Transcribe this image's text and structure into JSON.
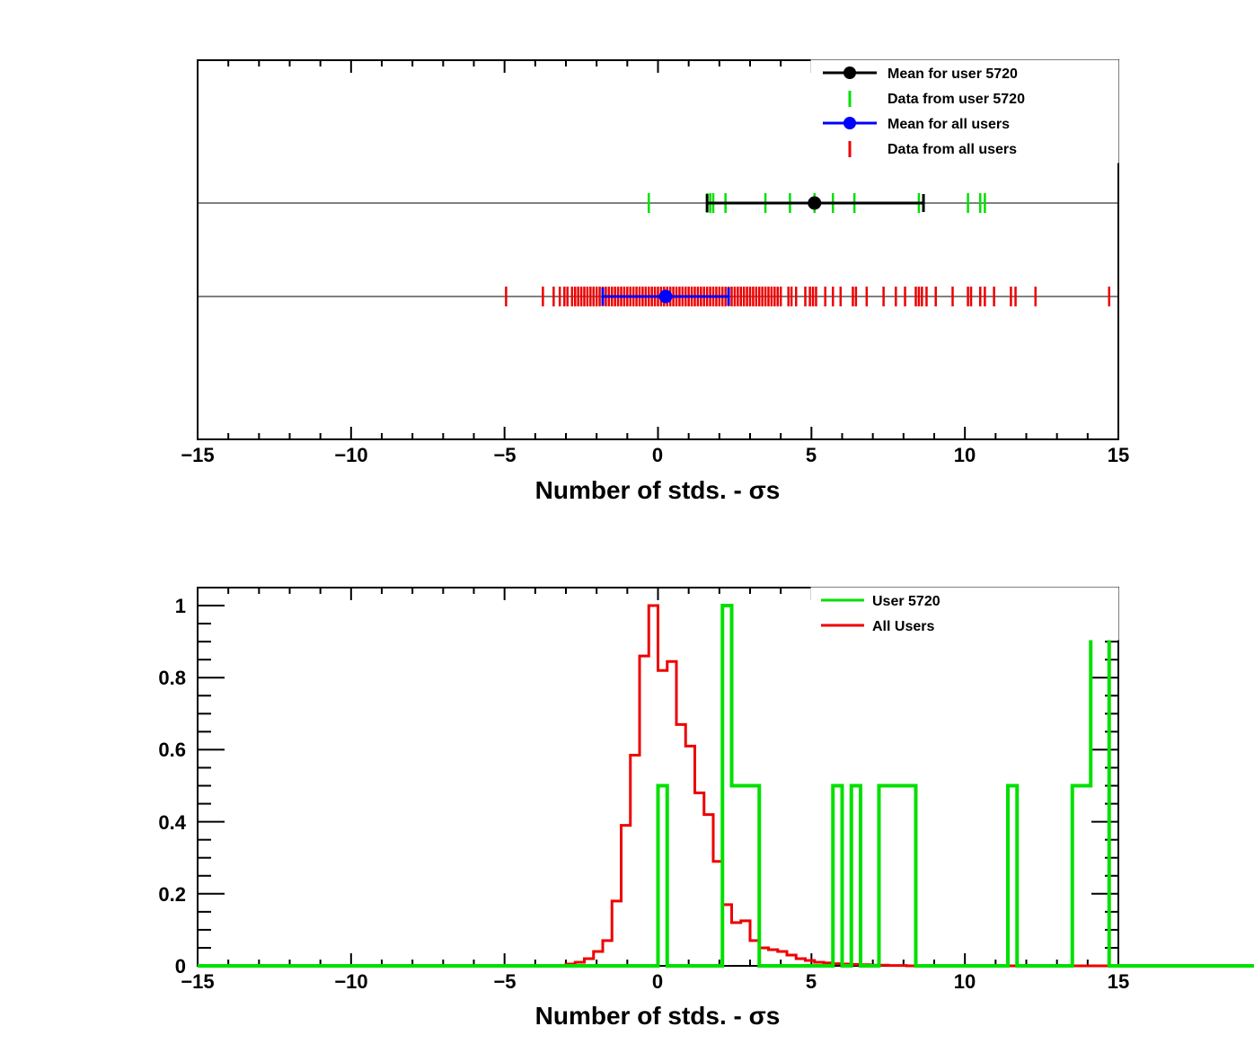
{
  "chart_data": [
    {
      "type": "scatter",
      "panel": "top",
      "xlabel": "Number of stds. -   σs",
      "xlim": [
        -15,
        15
      ],
      "x_ticks": [
        -15,
        -10,
        -5,
        0,
        5,
        10,
        15
      ],
      "x_tick_labels": [
        "−15",
        "−10",
        "−5",
        "0",
        "5",
        "10",
        "15"
      ],
      "grid": false,
      "legend_position": "top-right",
      "legend": [
        {
          "label": "Mean for user 5720",
          "color": "#000000",
          "style": "marker-line"
        },
        {
          "label": "Data from user 5720",
          "color": "#00e000",
          "style": "tick"
        },
        {
          "label": "Mean for all users",
          "color": "#0000ff",
          "style": "marker-line"
        },
        {
          "label": "Data from all users",
          "color": "#ee0000",
          "style": "tick"
        }
      ],
      "user_data": {
        "color": "#00e000",
        "values": [
          -0.3,
          1.6,
          1.7,
          1.8,
          2.2,
          3.5,
          4.3,
          5.1,
          5.7,
          6.4,
          8.5,
          10.1,
          10.5,
          10.65
        ],
        "mean": 5.1,
        "error_range": [
          1.6,
          8.65
        ],
        "mean_color": "#000000"
      },
      "all_data": {
        "color": "#ee0000",
        "values": [
          -4.95,
          -3.75,
          -3.4,
          -3.2,
          -3.05,
          -2.95,
          -2.8,
          -2.7,
          -2.6,
          -2.5,
          -2.4,
          -2.3,
          -2.2,
          -2.1,
          -2.0,
          -1.9,
          -1.8,
          -1.7,
          -1.6,
          -1.5,
          -1.4,
          -1.3,
          -1.2,
          -1.1,
          -1.0,
          -0.9,
          -0.8,
          -0.7,
          -0.6,
          -0.5,
          -0.4,
          -0.3,
          -0.2,
          -0.1,
          0.0,
          0.1,
          0.2,
          0.3,
          0.4,
          0.5,
          0.6,
          0.7,
          0.8,
          0.9,
          1.0,
          1.1,
          1.2,
          1.3,
          1.4,
          1.5,
          1.6,
          1.7,
          1.8,
          1.9,
          2.0,
          2.1,
          2.2,
          2.3,
          2.4,
          2.5,
          2.6,
          2.7,
          2.8,
          2.9,
          3.0,
          3.1,
          3.2,
          3.3,
          3.4,
          3.5,
          3.6,
          3.7,
          3.8,
          3.9,
          4.0,
          4.25,
          4.35,
          4.5,
          4.8,
          4.95,
          5.05,
          5.15,
          5.45,
          5.7,
          5.95,
          6.35,
          6.45,
          6.8,
          7.35,
          7.75,
          8.05,
          8.4,
          8.5,
          8.6,
          8.75,
          9.05,
          9.6,
          10.1,
          10.2,
          10.5,
          10.65,
          10.95,
          11.5,
          11.65,
          12.3,
          14.7
        ],
        "mean": 0.25,
        "error_range": [
          -1.8,
          2.3
        ],
        "mean_color": "#0000ff"
      }
    },
    {
      "type": "line",
      "panel": "bottom",
      "style": "step-histogram",
      "xlabel": "Number of stds. -   σs",
      "xlim": [
        -15,
        15
      ],
      "ylim": [
        0,
        1.05
      ],
      "x_ticks": [
        -15,
        -10,
        -5,
        0,
        5,
        10,
        15
      ],
      "x_tick_labels": [
        "−15",
        "−10",
        "−5",
        "0",
        "5",
        "10",
        "15"
      ],
      "y_ticks": [
        0,
        0.2,
        0.4,
        0.6,
        0.8,
        1
      ],
      "y_tick_labels": [
        "0",
        "0.2",
        "0.4",
        "0.6",
        "0.8",
        "1"
      ],
      "grid": false,
      "legend_position": "top-right",
      "bin_width": 0.3,
      "x_start": -15,
      "series": [
        {
          "name": "User 5720",
          "color": "#00e000",
          "values": [
            0,
            0,
            0,
            0,
            0,
            0,
            0,
            0,
            0,
            0,
            0,
            0,
            0,
            0,
            0,
            0,
            0,
            0,
            0,
            0,
            0,
            0,
            0,
            0,
            0,
            0,
            0,
            0,
            0,
            0,
            0,
            0,
            0,
            0,
            0,
            0,
            0,
            0,
            0,
            0,
            0,
            0,
            0,
            0,
            0,
            0,
            0,
            0,
            0,
            0,
            0.5,
            0,
            0,
            0,
            0,
            0,
            0,
            1,
            0.5,
            0.5,
            0.5,
            0,
            0,
            0,
            0,
            0,
            0,
            0,
            0,
            0.5,
            0,
            0.5,
            0,
            0,
            0.5,
            0.5,
            0.5,
            0.5,
            0,
            0,
            0,
            0,
            0,
            0,
            0,
            0,
            0,
            0,
            0.5,
            0,
            0,
            0,
            0,
            0,
            0,
            0.5,
            0.5,
            0.909,
            0.909,
            0,
            0,
            0,
            0,
            0,
            0,
            0,
            0,
            0,
            0,
            0,
            0,
            0,
            0,
            0,
            0,
            0,
            0,
            0,
            0,
            0,
            0
          ]
        },
        {
          "name": "All Users",
          "color": "#ee0000",
          "values": [
            0,
            0,
            0,
            0,
            0,
            0,
            0,
            0,
            0,
            0,
            0,
            0,
            0,
            0,
            0,
            0,
            0,
            0,
            0,
            0,
            0,
            0,
            0,
            0,
            0,
            0,
            0,
            0,
            0,
            0,
            0,
            0,
            0,
            0,
            0,
            0,
            0,
            0,
            0,
            0,
            0.005,
            0.01,
            0.02,
            0.04,
            0.07,
            0.18,
            0.39,
            0.585,
            0.86,
            1.0,
            0.82,
            0.845,
            0.67,
            0.61,
            0.48,
            0.42,
            0.29,
            0.17,
            0.12,
            0.125,
            0.07,
            0.05,
            0.045,
            0.04,
            0.03,
            0.02,
            0.015,
            0.01,
            0.008,
            0.006,
            0.005,
            0.004,
            0.003,
            0.002,
            0.002,
            0.001,
            0.001,
            0,
            0,
            0,
            0,
            0,
            0,
            0,
            0,
            0,
            0,
            0,
            0,
            0,
            0,
            0.001,
            0,
            0,
            0,
            0,
            0,
            0,
            0,
            0,
            0,
            0,
            0,
            0
          ]
        }
      ]
    }
  ]
}
